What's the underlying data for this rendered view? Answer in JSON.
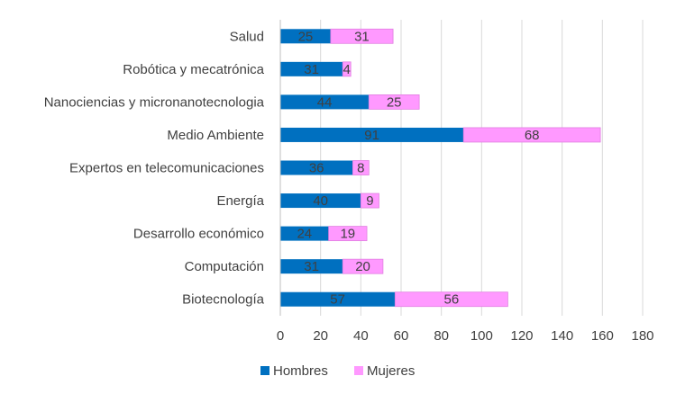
{
  "chart_data": {
    "type": "bar",
    "orientation": "horizontal",
    "stacked": true,
    "title": "",
    "xlabel": "",
    "ylabel": "",
    "xlim": [
      0,
      180
    ],
    "x_ticks": [
      0,
      20,
      40,
      60,
      80,
      100,
      120,
      140,
      160,
      180
    ],
    "grid": true,
    "legend_position": "bottom",
    "categories": [
      "Salud",
      "Robótica y mecatrónica",
      "Nanociencias y micronanotecnologia",
      "Medio Ambiente",
      "Expertos en telecomunicaciones",
      "Energía",
      "Desarrollo económico",
      "Computación",
      "Biotecnología"
    ],
    "series": [
      {
        "name": "Hombres",
        "color": "#0070C0",
        "values": [
          25,
          31,
          44,
          91,
          36,
          40,
          24,
          31,
          57
        ]
      },
      {
        "name": "Mujeres",
        "color": "#FF99FF",
        "values": [
          31,
          4,
          25,
          68,
          8,
          9,
          19,
          20,
          56
        ]
      }
    ]
  }
}
